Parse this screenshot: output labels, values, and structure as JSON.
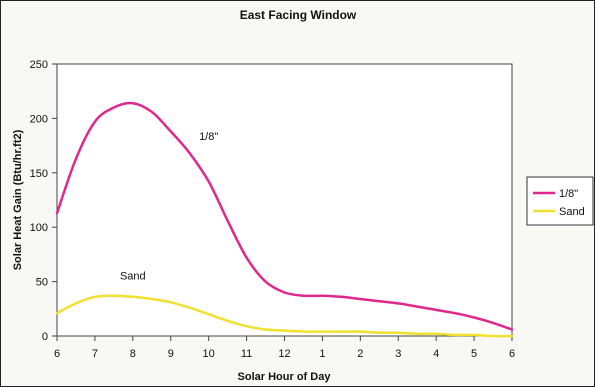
{
  "chart_data": {
    "type": "line",
    "title": "East Facing Window",
    "xlabel": "Solar Hour of Day",
    "ylabel": "Solar Heat Gain (Btu/hr.ft2)",
    "ylim": [
      0,
      250
    ],
    "yticks": [
      0,
      50,
      100,
      150,
      200,
      250
    ],
    "categories": [
      "6",
      "7",
      "8",
      "9",
      "10",
      "11",
      "12",
      "1",
      "2",
      "3",
      "4",
      "5",
      "6"
    ],
    "grid": false,
    "legend_position": "right",
    "series": [
      {
        "name": "1/8\"",
        "color": "#e0288c",
        "x": [
          6,
          6.5,
          7,
          7.5,
          8,
          8.5,
          9,
          9.5,
          10,
          10.5,
          11,
          11.5,
          12,
          12.5,
          13,
          13.5,
          14,
          14.5,
          15,
          15.5,
          16,
          16.5,
          17,
          17.5,
          18
        ],
        "values": [
          113,
          163,
          197,
          210,
          214,
          206,
          188,
          168,
          142,
          106,
          72,
          50,
          40,
          37,
          37,
          36,
          34,
          32,
          30,
          27,
          24,
          21,
          17,
          12,
          6
        ]
      },
      {
        "name": "Sand",
        "color": "#f0e030",
        "x": [
          6,
          6.5,
          7,
          7.5,
          8,
          8.5,
          9,
          9.5,
          10,
          10.5,
          11,
          11.5,
          12,
          12.5,
          13,
          13.5,
          14,
          14.5,
          15,
          15.5,
          16,
          16.5,
          17,
          17.5,
          18
        ],
        "values": [
          21,
          30,
          36,
          37,
          36,
          34,
          31,
          26,
          20,
          14,
          9,
          6,
          5,
          4,
          4,
          4,
          4,
          3,
          3,
          2,
          2,
          1,
          1,
          0,
          0
        ]
      }
    ],
    "annotations": [
      {
        "text": "1/8\"",
        "x": 10,
        "y": 180
      },
      {
        "text": "Sand",
        "x": 8,
        "y": 52
      }
    ]
  }
}
